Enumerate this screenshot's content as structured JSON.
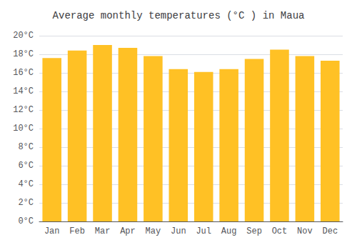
{
  "chart_data": {
    "type": "bar",
    "title": "Average monthly temperatures (°C ) in Maua",
    "categories": [
      "Jan",
      "Feb",
      "Mar",
      "Apr",
      "May",
      "Jun",
      "Jul",
      "Aug",
      "Sep",
      "Oct",
      "Nov",
      "Dec"
    ],
    "values": [
      17.6,
      18.4,
      19.0,
      18.7,
      17.8,
      16.4,
      16.1,
      16.4,
      17.5,
      18.5,
      17.8,
      17.3
    ],
    "color": "#FFC125",
    "ylim": [
      0,
      20
    ],
    "yticks": [
      {
        "value": 0,
        "label": "0°C"
      },
      {
        "value": 2,
        "label": "2°C"
      },
      {
        "value": 4,
        "label": "4°C"
      },
      {
        "value": 6,
        "label": "6°C"
      },
      {
        "value": 8,
        "label": "8°C"
      },
      {
        "value": 10,
        "label": "10°C"
      },
      {
        "value": 12,
        "label": "12°C"
      },
      {
        "value": 14,
        "label": "14°C"
      },
      {
        "value": 16,
        "label": "16°C"
      },
      {
        "value": 18,
        "label": "18°C"
      },
      {
        "value": 20,
        "label": "20°C"
      }
    ],
    "grid": true
  }
}
